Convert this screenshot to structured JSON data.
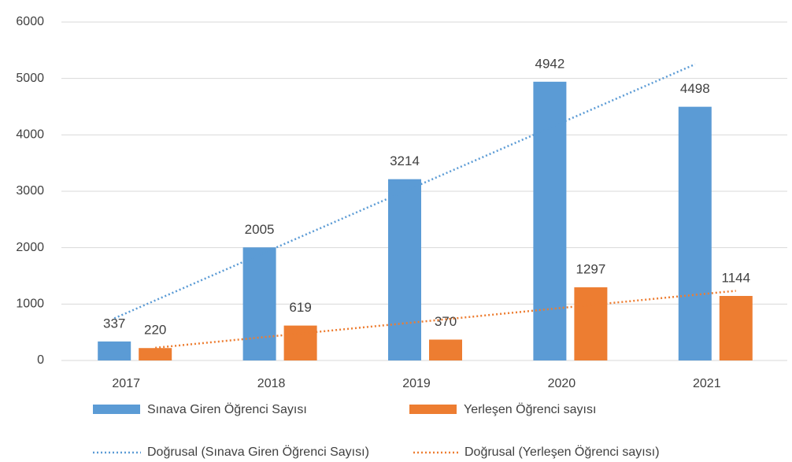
{
  "chart_data": {
    "type": "bar",
    "categories": [
      "2017",
      "2018",
      "2019",
      "2020",
      "2021"
    ],
    "series": [
      {
        "name": "Sınava Giren Öğrenci Sayısı",
        "color": "#5b9bd5",
        "values": [
          337,
          2005,
          3214,
          4942,
          4498
        ]
      },
      {
        "name": "Yerleşen Öğrenci sayısı",
        "color": "#ed7d31",
        "values": [
          220,
          619,
          370,
          1297,
          1144
        ]
      }
    ],
    "trendlines": [
      {
        "label": "Doğrusal (Sınava Giren Öğrenci Sayısı)",
        "series": 0,
        "kind": "linear"
      },
      {
        "label": "Doğrusal (Yerleşen Öğrenci sayısı)",
        "series": 1,
        "kind": "linear"
      }
    ],
    "ylim": [
      0,
      6000
    ],
    "yticks": [
      0,
      1000,
      2000,
      3000,
      4000,
      5000,
      6000
    ],
    "grid": true
  }
}
